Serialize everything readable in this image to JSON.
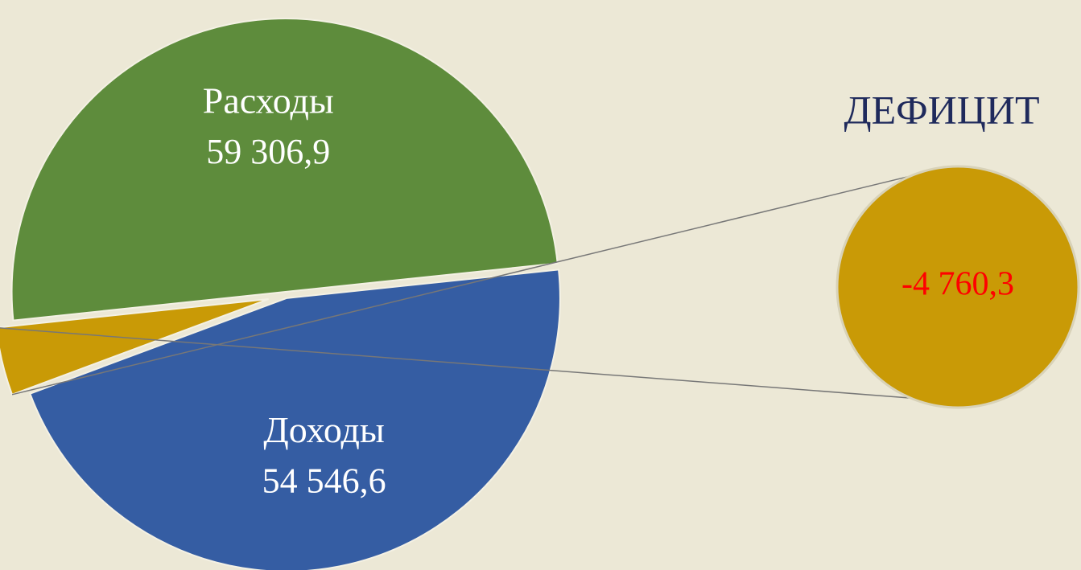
{
  "chart_data": {
    "type": "pie",
    "categories": [
      "Расходы",
      "Доходы",
      "ДЕФИЦИТ"
    ],
    "values": [
      59306.9,
      54546.6,
      -4760.3
    ],
    "value_labels": [
      "59 306,9",
      "54 546,6",
      "-4 760,3"
    ],
    "colors": [
      "#5e8c3c",
      "#355da3",
      "#c99a06"
    ]
  }
}
